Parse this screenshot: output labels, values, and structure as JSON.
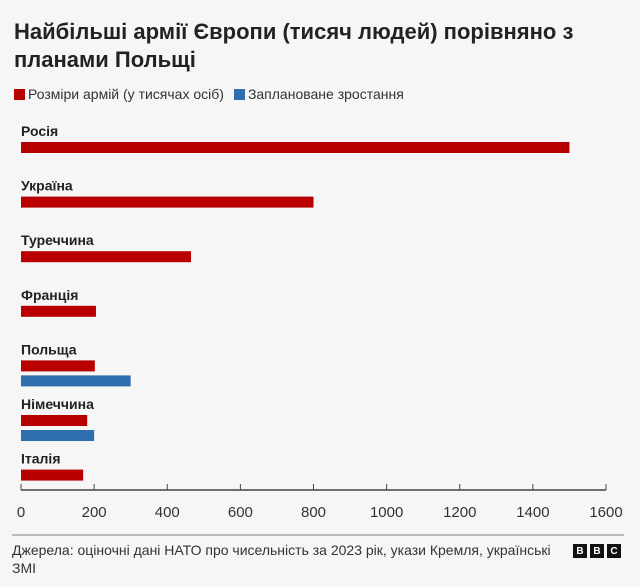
{
  "chart_data": {
    "type": "bar",
    "orientation": "horizontal",
    "title": "Найбільші армії Європи (тисяч людей) порівняно з планами Польщі",
    "categories": [
      "Росія",
      "Україна",
      "Туреччина",
      "Франція",
      "Польща",
      "Німеччина",
      "Італія"
    ],
    "series": [
      {
        "name": "Розміри армій (у тисячах осіб)",
        "color": "#b80000",
        "values": [
          1500,
          800,
          465,
          205,
          202,
          181,
          170
        ]
      },
      {
        "name": "Заплановане зростання",
        "color": "#2f6fb0",
        "values": [
          null,
          null,
          null,
          null,
          300,
          200,
          null
        ]
      }
    ],
    "xlim": [
      0,
      1600
    ],
    "xticks": [
      "0",
      "200",
      "400",
      "600",
      "800",
      "1000",
      "1200",
      "1400",
      "1600"
    ],
    "legend": "top-left",
    "grid": false
  },
  "source": "Джерела: оціночні дані НАТО про чисельність за 2023 рік, укази Кремля, українські ЗМІ",
  "logo": [
    "B",
    "B",
    "C"
  ]
}
